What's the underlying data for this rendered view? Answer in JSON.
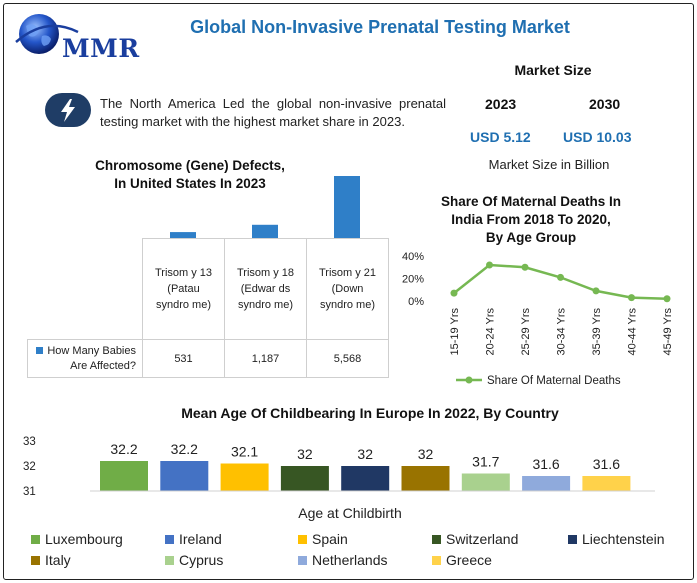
{
  "brand": {
    "logo_text": "MMR"
  },
  "title": "Global Non-Invasive Prenatal Testing Market",
  "lead_text": "The North America Led the global non-invasive prenatal testing market with the highest market share in 2023.",
  "market_size": {
    "title": "Market Size",
    "years": [
      "2023",
      "2030"
    ],
    "values": [
      "USD 5.12",
      "USD 10.03"
    ],
    "note": "Market Size in Billion"
  },
  "colors": {
    "title_blue": "#1f6fb1",
    "bar_blue": "#2f7fc8",
    "line_green": "#76b852"
  },
  "chart_data": [
    {
      "type": "bar",
      "title": "Chromosome (Gene) Defects, In United States In 2023",
      "title_lines": [
        "Chromosome (Gene) Defects,",
        "In United States In 2023"
      ],
      "categories": [
        "Trisomy 13 (Patau syndrome)",
        "Trisomy 18 (Edwards syndrome)",
        "Trisomy 21 (Down syndrome)"
      ],
      "category_display": [
        "Trisom y 13 (Patau syndro me)",
        "Trisom y 18 (Edwar ds syndro me)",
        "Trisom y 21 (Down syndro me)"
      ],
      "series": [
        {
          "name": "How Many Babies Are Affected?",
          "values": [
            531,
            1187,
            5568
          ]
        }
      ],
      "value_labels": [
        "531",
        "1,187",
        "5,568"
      ],
      "data_table": true
    },
    {
      "type": "line",
      "title": "Share Of Maternal Deaths In India From 2018 To 2020, By Age Group",
      "title_lines": [
        "Share Of Maternal Deaths In",
        "India From 2018 To 2020,",
        "By Age Group"
      ],
      "categories": [
        "15-19 Yrs",
        "20-24 Yrs",
        "25-29 Yrs",
        "30-34 Yrs",
        "35-39 Yrs",
        "40-44 Yrs",
        "45-49 Yrs"
      ],
      "series": [
        {
          "name": "Share Of Maternal Deaths",
          "values": [
            7,
            32,
            30,
            21,
            9,
            3,
            2
          ]
        }
      ],
      "ylim": [
        0,
        40
      ],
      "yticks": [
        "0%",
        "20%",
        "40%"
      ],
      "legend_position": "bottom"
    },
    {
      "type": "bar",
      "title": "Mean Age Of Childbearing In Europe In 2022, By Country",
      "xlabel": "Age at Childbirth",
      "categories": [
        "Luxembourg",
        "Ireland",
        "Spain",
        "Switzerland",
        "Liechtenstein",
        "Italy",
        "Cyprus",
        "Netherlands",
        "Greece"
      ],
      "values": [
        32.2,
        32.2,
        32.1,
        32,
        32,
        32,
        31.7,
        31.6,
        31.6
      ],
      "value_labels": [
        "32.2",
        "32.2",
        "32.1",
        "32",
        "32",
        "32",
        "31.7",
        "31.6",
        "31.6"
      ],
      "colors": [
        "#70ad47",
        "#4472c4",
        "#ffc000",
        "#375623",
        "#203864",
        "#997300",
        "#a9d18e",
        "#8faadc",
        "#ffd24a"
      ],
      "ylim": [
        31,
        33
      ],
      "yticks": [
        "31",
        "32",
        "33"
      ],
      "legend_position": "bottom"
    }
  ]
}
